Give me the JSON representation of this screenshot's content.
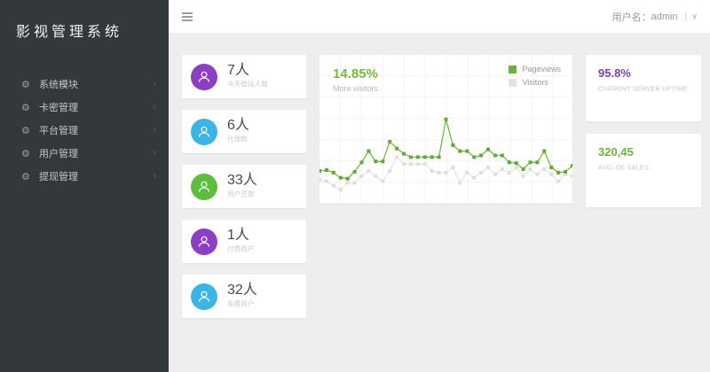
{
  "sidebar": {
    "title": "影视管理系统",
    "chevron": "›",
    "gear": "⚙",
    "items": [
      {
        "label": "系统模块"
      },
      {
        "label": "卡密管理"
      },
      {
        "label": "平台管理"
      },
      {
        "label": "用户管理"
      },
      {
        "label": "提现管理"
      }
    ]
  },
  "topbar": {
    "user_label": "用户名：",
    "username": "admin",
    "divider": "|",
    "caret": "∨"
  },
  "stats": [
    {
      "value": "7人",
      "label": "今天登陆人数",
      "color": "#8a3fc4"
    },
    {
      "value": "6人",
      "label": "代理数",
      "color": "#3bb5e8"
    },
    {
      "value": "33人",
      "label": "用户总数",
      "color": "#5bbf3d"
    },
    {
      "value": "1人",
      "label": "付费用户",
      "color": "#8a3fc4"
    },
    {
      "value": "32人",
      "label": "免费用户",
      "color": "#3bb5e8"
    }
  ],
  "chart_card": {
    "headline": "14.85%",
    "subtitle": "More visitors",
    "legend": [
      {
        "label": "Pageviews",
        "color": "#6cb33e"
      },
      {
        "label": "Visitors",
        "color": "#e3e3e3"
      }
    ]
  },
  "kpis": [
    {
      "value": "95.8%",
      "label": "CURRENT SERVER UPTIME",
      "color": "#7a42b2"
    },
    {
      "value": "320,45",
      "label": "AVG. OF SALES",
      "color": "#6db33f"
    }
  ],
  "chart_data": {
    "type": "line",
    "title": "14.85%",
    "subtitle": "More visitors",
    "grid": true,
    "legend_position": "top-right",
    "ylim": [
      0,
      100
    ],
    "series": [
      {
        "name": "Pageviews",
        "color": "#74bb3f",
        "marker": "#61a933",
        "values": [
          32,
          33,
          30,
          24,
          23,
          31,
          42,
          55,
          43,
          43,
          66,
          58,
          52,
          48,
          48,
          48,
          48,
          48,
          92,
          62,
          55,
          55,
          48,
          50,
          57,
          50,
          50,
          42,
          41,
          34,
          42,
          42,
          55,
          36,
          30,
          31,
          38
        ]
      },
      {
        "name": "Visitors",
        "color": "#e6e6e6",
        "marker": "#dedede",
        "values": [
          22,
          20,
          15,
          10,
          18,
          18,
          26,
          32,
          26,
          20,
          32,
          48,
          40,
          40,
          40,
          40,
          32,
          30,
          30,
          36,
          18,
          30,
          24,
          30,
          36,
          28,
          34,
          30,
          36,
          26,
          34,
          28,
          34,
          28,
          20,
          28,
          26
        ]
      }
    ]
  }
}
